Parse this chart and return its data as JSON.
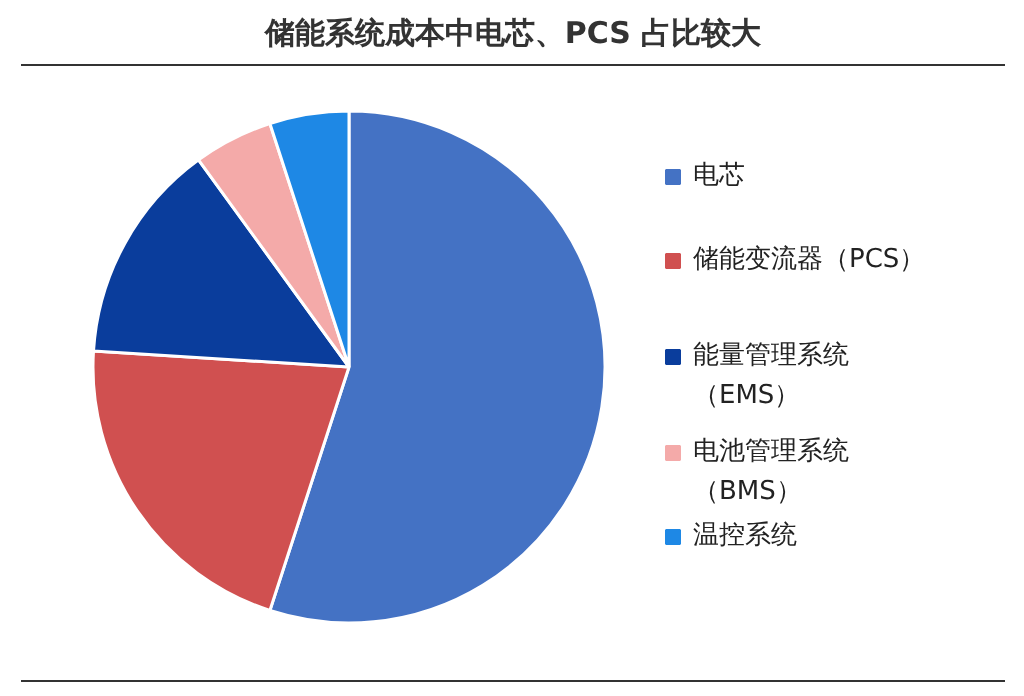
{
  "chart_data": {
    "type": "pie",
    "title": "储能系统成本中电芯、PCS 占比较大",
    "categories": [
      "电芯",
      "储能变流器（PCS）",
      "能量管理系统（EMS）",
      "电池管理系统（BMS）",
      "温控系统"
    ],
    "values": [
      55,
      21,
      14,
      5,
      5
    ],
    "colors": [
      "#4472c4",
      "#d05050",
      "#0a3d9c",
      "#f4aaa9",
      "#1e88e5"
    ],
    "legend": "right"
  }
}
